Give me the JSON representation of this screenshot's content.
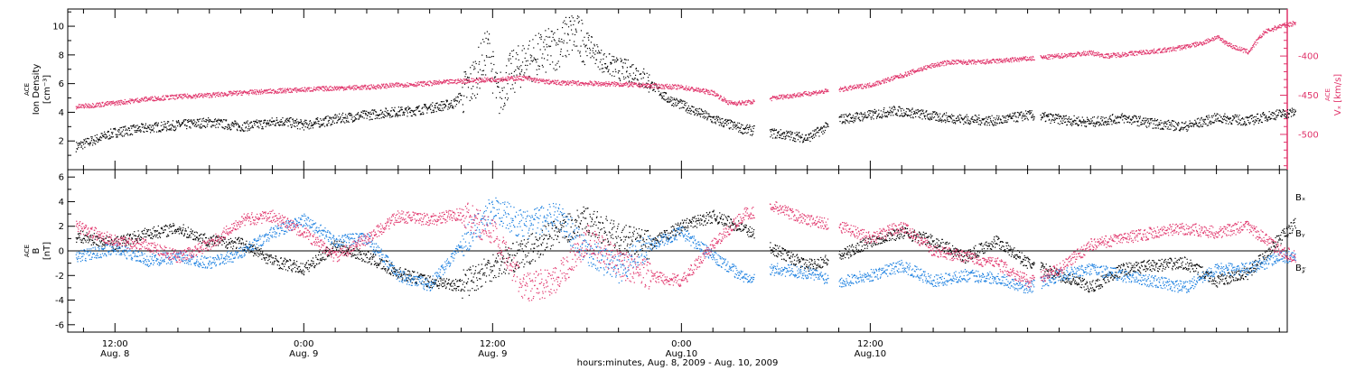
{
  "colors": {
    "black": "#000000",
    "blue": "#1a7fe0",
    "red": "#e0336a"
  },
  "chart_data": [
    {
      "type": "scatter",
      "panel": "top",
      "left_axis": {
        "label_lines": [
          "ACE",
          "Ion Density",
          "[cm⁻³]"
        ],
        "range": [
          0,
          11.2
        ],
        "ticks": [
          2,
          4,
          6,
          8,
          10
        ]
      },
      "right_axis": {
        "label_lines": [
          "ACE",
          "Vₓ [km/s]"
        ],
        "range": [
          -545,
          -340
        ],
        "ticks": [
          -500,
          -450,
          -400
        ],
        "tick_labels": [
          "-500",
          "-450",
          "-400"
        ]
      },
      "series": [
        {
          "axis": "left",
          "color": "#000000",
          "x": [
            -2.5,
            0,
            2,
            4,
            6,
            8,
            9.5,
            10.5,
            12,
            13,
            14.5,
            16,
            17.5,
            19,
            20,
            21.5,
            22.5,
            23,
            23.7,
            24.3,
            25,
            26,
            27,
            28,
            29,
            30,
            31,
            32,
            33,
            34,
            35,
            36,
            37,
            38,
            40,
            42,
            44,
            46,
            48,
            49.5,
            51,
            52,
            54,
            56,
            58,
            60,
            62,
            64,
            66,
            68,
            70,
            72,
            73.5,
            75
          ],
          "y": [
            1.6,
            2.6,
            2.9,
            3.1,
            3.3,
            3.0,
            3.2,
            3.4,
            3.1,
            3.3,
            3.6,
            3.8,
            4.0,
            4.1,
            4.3,
            4.6,
            5.8,
            6.8,
            8.5,
            5.0,
            6.5,
            7.5,
            8.0,
            8.5,
            9.5,
            8.8,
            7.5,
            7.0,
            6.8,
            6.0,
            5.0,
            4.5,
            4.0,
            3.5,
            2.8,
            2.5,
            2.2,
            3.5,
            3.8,
            4.1,
            3.9,
            3.7,
            3.5,
            3.4,
            3.8,
            3.5,
            3.3,
            3.6,
            3.2,
            3.0,
            3.6,
            3.4,
            3.8,
            4.0
          ]
        },
        {
          "axis": "right",
          "color": "#e0336a",
          "x": [
            -2.5,
            0,
            2,
            4,
            6,
            8,
            10,
            12,
            14,
            16,
            18,
            20,
            22,
            24,
            26,
            27,
            28,
            30,
            32,
            34,
            36,
            38,
            39,
            40,
            41,
            42,
            44,
            46,
            48,
            50,
            51,
            52,
            53,
            55,
            57,
            59,
            61,
            62,
            63,
            65,
            67,
            69,
            70,
            71,
            72,
            73,
            74,
            75
          ],
          "y": [
            -465,
            -460,
            -455,
            -452,
            -450,
            -447,
            -445,
            -443,
            -441,
            -440,
            -437,
            -435,
            -432,
            -430,
            -428,
            -432,
            -434,
            -435,
            -436,
            -438,
            -440,
            -447,
            -460,
            -460,
            -457,
            -453,
            -448,
            -443,
            -437,
            -425,
            -418,
            -412,
            -408,
            -408,
            -405,
            -402,
            -398,
            -396,
            -400,
            -396,
            -392,
            -384,
            -376,
            -388,
            -395,
            -370,
            -362,
            -358
          ]
        }
      ]
    },
    {
      "type": "scatter",
      "panel": "bottom",
      "left_axis": {
        "label_lines": [
          "ACE",
          "B",
          "[nT]"
        ],
        "range": [
          -6.6,
          6.6
        ],
        "ticks": [
          -6,
          -4,
          -2,
          0,
          2,
          4,
          6
        ]
      },
      "legend": [
        "Bₓ",
        "Bᵧ",
        "B𝓏"
      ],
      "series": [
        {
          "name": "Bₓ",
          "color": "#000000",
          "x": [
            -2.5,
            0,
            2,
            4,
            6,
            8,
            10,
            12,
            14,
            16,
            18,
            20,
            22,
            24,
            26,
            28,
            30,
            32,
            34,
            36,
            38,
            40,
            42,
            44,
            46,
            48,
            50,
            52,
            54,
            56,
            58,
            60,
            62,
            64,
            66,
            68,
            70,
            72,
            74,
            75
          ],
          "y": [
            1.2,
            0.6,
            1.4,
            1.8,
            0.8,
            0.6,
            -0.8,
            -1.5,
            0.4,
            -0.5,
            -1.8,
            -2.5,
            -2.8,
            -1.2,
            -0.2,
            1.5,
            2.5,
            1.0,
            0.5,
            2.0,
            2.8,
            1.8,
            0.0,
            -1.2,
            -0.5,
            0.8,
            1.5,
            0.8,
            -0.5,
            0.8,
            -1.0,
            -2.0,
            -3.0,
            -1.5,
            -1.2,
            -1.0,
            -2.5,
            -1.8,
            1.0,
            2.2
          ]
        },
        {
          "name": "Bᵧ",
          "color": "#1a7fe0",
          "x": [
            -2.5,
            0,
            2,
            4,
            6,
            8,
            10,
            12,
            14,
            16,
            18,
            20,
            22,
            24,
            26,
            28,
            30,
            32,
            34,
            36,
            38,
            40,
            42,
            44,
            46,
            48,
            50,
            52,
            54,
            56,
            58,
            60,
            62,
            64,
            66,
            68,
            70,
            72,
            74,
            75
          ],
          "y": [
            -0.5,
            0.2,
            -0.8,
            -0.5,
            -1.0,
            -0.2,
            1.5,
            2.5,
            0.8,
            1.0,
            -2.0,
            -2.8,
            0.5,
            3.5,
            2.0,
            3.0,
            0.0,
            -1.5,
            0.5,
            1.5,
            -0.5,
            -2.2,
            -1.5,
            -1.8,
            -2.5,
            -2.0,
            -1.2,
            -2.5,
            -2.0,
            -2.2,
            -3.0,
            -2.0,
            -1.5,
            -2.0,
            -2.5,
            -3.0,
            -1.5,
            -1.5,
            -0.5,
            -0.5
          ]
        },
        {
          "name": "B𝓏",
          "color": "#e0336a",
          "x": [
            -2.5,
            0,
            2,
            4,
            6,
            8,
            10,
            12,
            14,
            16,
            18,
            20,
            22,
            24,
            26,
            28,
            30,
            32,
            34,
            36,
            38,
            40,
            42,
            44,
            46,
            48,
            50,
            52,
            54,
            56,
            58,
            60,
            62,
            64,
            66,
            68,
            70,
            72,
            74,
            75
          ],
          "y": [
            2.0,
            0.8,
            0.5,
            -0.5,
            0.5,
            2.5,
            2.8,
            1.5,
            -0.5,
            1.0,
            2.8,
            2.5,
            3.0,
            1.5,
            -3.0,
            -2.5,
            1.0,
            -1.0,
            -2.0,
            -2.5,
            0.5,
            3.0,
            3.5,
            2.5,
            2.0,
            1.0,
            2.0,
            0.0,
            -0.5,
            -1.0,
            -2.5,
            -1.5,
            0.5,
            1.0,
            1.5,
            1.8,
            1.5,
            2.0,
            0.0,
            -0.5
          ]
        }
      ]
    }
  ],
  "x_axis": {
    "range": [
      -3,
      74.5
    ],
    "major_ticks": [
      {
        "x": 0,
        "time": "12:00",
        "date": "Aug. 8"
      },
      {
        "x": 12,
        "time": "0:00",
        "date": "Aug. 9"
      },
      {
        "x": 24,
        "time": "12:00",
        "date": "Aug. 9"
      },
      {
        "x": 36,
        "time": "0:00",
        "date": "Aug.10"
      },
      {
        "x": 48,
        "time": "12:00",
        "date": "Aug.10"
      }
    ],
    "minor_step": 2,
    "label": "hours:minutes, Aug.  8, 2009 - Aug. 10, 2009"
  }
}
